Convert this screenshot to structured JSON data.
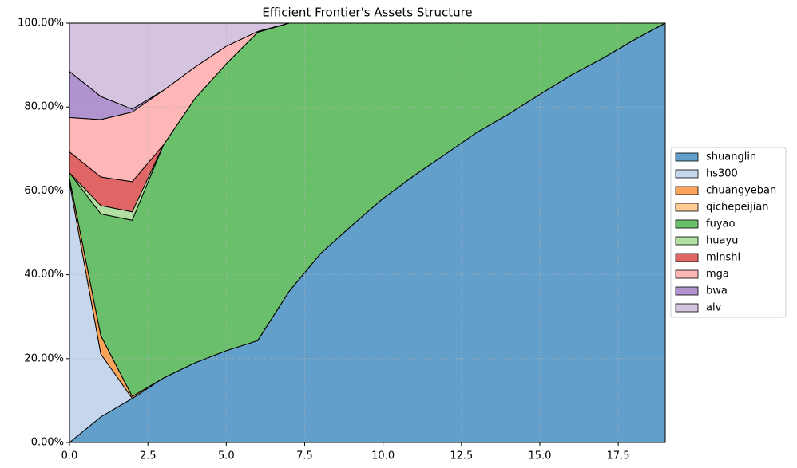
{
  "chart_data": {
    "type": "stacked_area",
    "title": "Efficient Frontier's Assets Structure",
    "x": [
      0,
      1,
      2,
      3,
      4,
      5,
      6,
      7,
      8,
      9,
      10,
      11,
      12,
      13,
      14,
      15,
      16,
      17,
      18,
      19
    ],
    "xlim": [
      0,
      19
    ],
    "xticks": [
      {
        "value": 0,
        "label": "0.0"
      },
      2.5,
      {
        "value": 5,
        "label": "5.0"
      },
      7.5,
      {
        "value": 10,
        "label": "10.0"
      },
      12.5,
      {
        "value": 15,
        "label": "15.0"
      },
      17.5
    ],
    "ylim": [
      0,
      100
    ],
    "yticks": [
      {
        "value": 0,
        "label": "0.00%"
      },
      {
        "value": 20,
        "label": "20.00%"
      },
      {
        "value": 40,
        "label": "40.00%"
      },
      {
        "value": 60,
        "label": "60.00%"
      },
      {
        "value": 80,
        "label": "80.00%"
      },
      {
        "value": 100,
        "label": "100.00%"
      }
    ],
    "grid": true,
    "legend": "right",
    "series": [
      {
        "name": "shuanglin",
        "color": "#629fca",
        "values": [
          0,
          6.1,
          10.5,
          15.4,
          19,
          21.9,
          24.3,
          36,
          45,
          51.7,
          58.2,
          63.7,
          68.8,
          74,
          78.3,
          83,
          87.6,
          91.6,
          96,
          100
        ]
      },
      {
        "name": "hs300",
        "color": "#c6d7ed",
        "values": [
          62,
          15,
          0,
          0,
          0,
          0,
          0,
          0,
          0,
          0,
          0,
          0,
          0,
          0,
          0,
          0,
          0,
          0,
          0,
          0
        ]
      },
      {
        "name": "chuangyeban",
        "color": "#f9a45a",
        "values": [
          1,
          4.4,
          0.5,
          0,
          0,
          0,
          0,
          0,
          0,
          0,
          0,
          0,
          0,
          0,
          0,
          0,
          0,
          0,
          0,
          0
        ]
      },
      {
        "name": "qichepeijian",
        "color": "#fdcb93",
        "values": [
          0,
          0,
          0,
          0,
          0,
          0,
          0,
          0,
          0,
          0,
          0,
          0,
          0,
          0,
          0,
          0,
          0,
          0,
          0,
          0
        ]
      },
      {
        "name": "fuyao",
        "color": "#6abf6a",
        "values": [
          1.3,
          29,
          42,
          55.6,
          63,
          68.4,
          73.5,
          64,
          55,
          48.3,
          41.8,
          36.3,
          31.2,
          26,
          21.7,
          17,
          12.4,
          8.4,
          4,
          0
        ]
      },
      {
        "name": "huayu",
        "color": "#b2e0a2",
        "values": [
          0,
          2,
          2,
          0,
          0,
          0,
          0,
          0,
          0,
          0,
          0,
          0,
          0,
          0,
          0,
          0,
          0,
          0,
          0,
          0
        ]
      },
      {
        "name": "minshi",
        "color": "#e06666",
        "values": [
          5,
          6.8,
          7.2,
          0,
          0,
          0,
          0,
          0,
          0,
          0,
          0,
          0,
          0,
          0,
          0,
          0,
          0,
          0,
          0,
          0
        ]
      },
      {
        "name": "mga",
        "color": "#ffb6b6",
        "values": [
          8.2,
          13.7,
          16.6,
          13,
          7.5,
          4.2,
          0.2,
          0,
          0,
          0,
          0,
          0,
          0,
          0,
          0,
          0,
          0,
          0,
          0,
          0
        ]
      },
      {
        "name": "bwa",
        "color": "#b194cf",
        "values": [
          11,
          5.5,
          0.7,
          0,
          0,
          0,
          0,
          0,
          0,
          0,
          0,
          0,
          0,
          0,
          0,
          0,
          0,
          0,
          0,
          0
        ]
      },
      {
        "name": "alv",
        "color": "#d4c4e0",
        "values": [
          11.5,
          17.5,
          20.5,
          16,
          10.5,
          5.5,
          2,
          0,
          0,
          0,
          0,
          0,
          0,
          0,
          0,
          0,
          0,
          0,
          0,
          0
        ]
      }
    ]
  }
}
